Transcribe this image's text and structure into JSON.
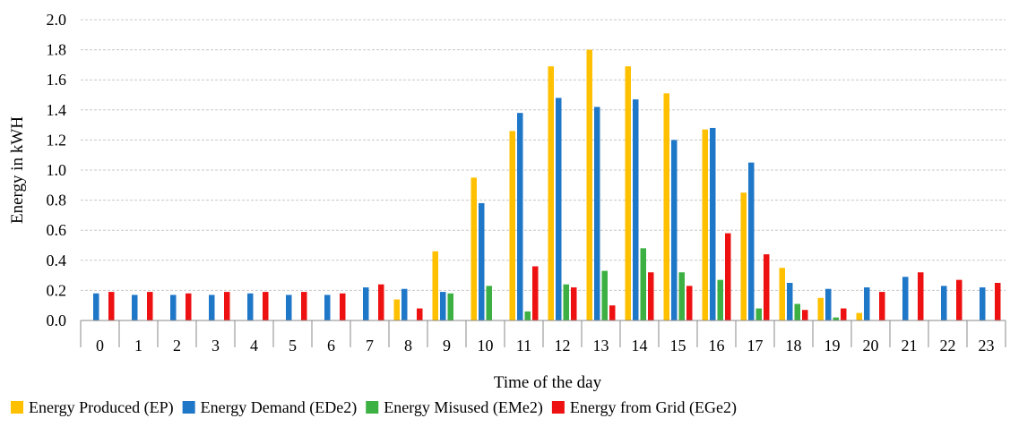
{
  "chart_data": {
    "type": "bar",
    "xlabel": "Time of the day",
    "ylabel": "Energy in kWH",
    "ylim": [
      0,
      2.0
    ],
    "yticks": [
      "0.0",
      "0.2",
      "0.4",
      "0.6",
      "0.8",
      "1.0",
      "1.2",
      "1.4",
      "1.6",
      "1.8",
      "2.0"
    ],
    "grid": true,
    "legend_position": "bottom",
    "categories": [
      "0",
      "1",
      "2",
      "3",
      "4",
      "5",
      "6",
      "7",
      "8",
      "9",
      "10",
      "11",
      "12",
      "13",
      "14",
      "15",
      "16",
      "17",
      "18",
      "19",
      "20",
      "21",
      "22",
      "23"
    ],
    "series": [
      {
        "name": "Energy Produced (EP)",
        "color": "#FFC000",
        "values": [
          0,
          0,
          0,
          0,
          0,
          0,
          0,
          0,
          0.14,
          0.46,
          0.95,
          1.26,
          1.69,
          1.8,
          1.69,
          1.51,
          1.27,
          0.85,
          0.35,
          0.15,
          0.05,
          0,
          0,
          0
        ]
      },
      {
        "name": "Energy Demand (EDe2)",
        "color": "#1F77C8",
        "values": [
          0.18,
          0.17,
          0.17,
          0.17,
          0.18,
          0.17,
          0.17,
          0.22,
          0.21,
          0.19,
          0.78,
          1.38,
          1.48,
          1.42,
          1.47,
          1.2,
          1.28,
          1.05,
          0.25,
          0.21,
          0.22,
          0.29,
          0.23,
          0.22
        ]
      },
      {
        "name": "Energy Misused (EMe2)",
        "color": "#3CB043",
        "values": [
          0,
          0,
          0,
          0,
          0,
          0,
          0,
          0,
          0,
          0.18,
          0.23,
          0.06,
          0.24,
          0.33,
          0.48,
          0.32,
          0.27,
          0.08,
          0.11,
          0.02,
          0,
          0,
          0,
          0
        ]
      },
      {
        "name": "Energy from Grid (EGe2)",
        "color": "#EE1111",
        "values": [
          0.19,
          0.19,
          0.18,
          0.19,
          0.19,
          0.19,
          0.18,
          0.24,
          0.08,
          0,
          0,
          0.36,
          0.22,
          0.1,
          0.32,
          0.23,
          0.58,
          0.44,
          0.07,
          0.08,
          0.19,
          0.32,
          0.27,
          0.25
        ]
      }
    ]
  }
}
